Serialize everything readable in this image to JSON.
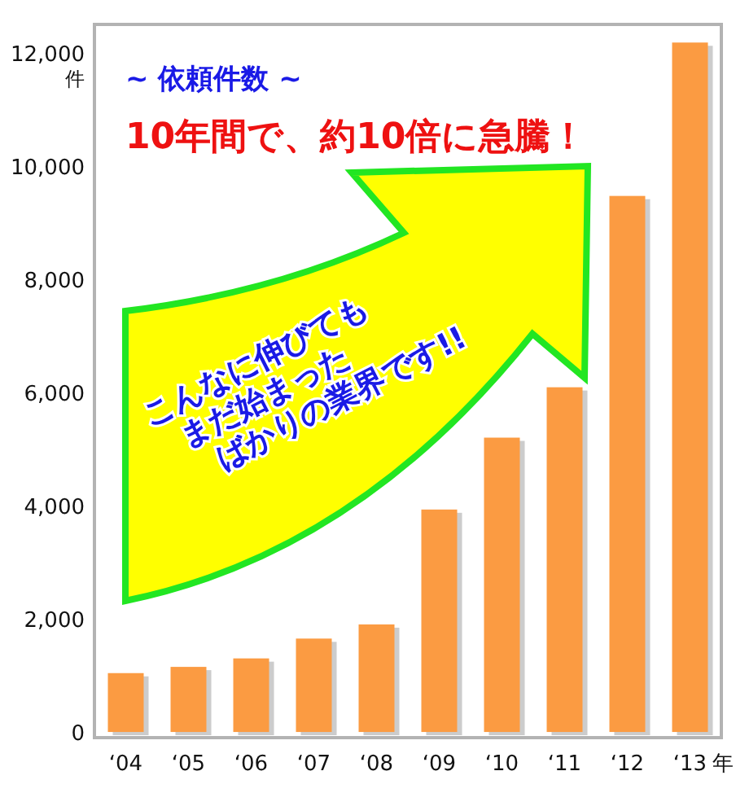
{
  "chart_data": {
    "type": "bar",
    "title": "~ 依頼件数 ~",
    "subtitle": "10年間で、約10倍に急騰！",
    "xlabel": "年",
    "ylabel": "件",
    "categories": [
      "‘04",
      "‘05",
      "‘06",
      "‘07",
      "‘08",
      "‘09",
      "‘10",
      "‘11",
      "‘12",
      "‘13"
    ],
    "values": [
      1040,
      1150,
      1300,
      1650,
      1900,
      3930,
      5200,
      6090,
      9470,
      12180
    ],
    "color": "#fb9b42",
    "ylim": [
      -100,
      12500
    ],
    "yticks": [
      {
        "value": 0,
        "label": "0"
      },
      {
        "value": 2000,
        "label": "2,000"
      },
      {
        "value": 4000,
        "label": "4,000"
      },
      {
        "value": 6000,
        "label": "6,000"
      },
      {
        "value": 8000,
        "label": "8,000"
      },
      {
        "value": 10000,
        "label": "10,000"
      },
      {
        "value": 12000,
        "label": "12,000"
      }
    ],
    "grid": false,
    "annotations": [
      "こんなに伸びても",
      "まだ始まった",
      "ばかりの業界です!!"
    ]
  }
}
